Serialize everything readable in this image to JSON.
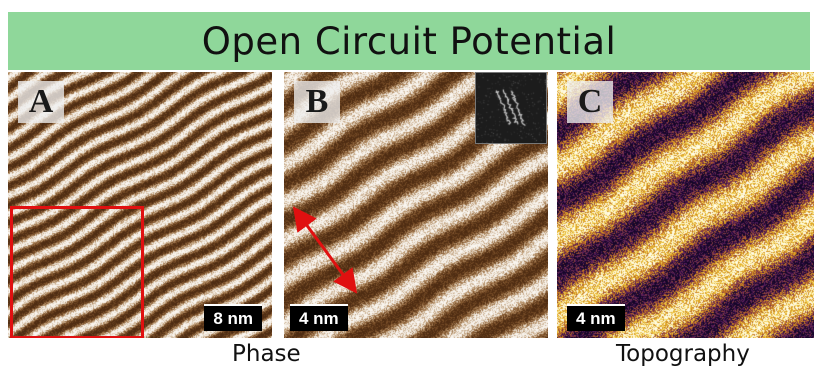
{
  "title": "Open Circuit Potential",
  "panels": [
    {
      "letter": "A",
      "scale_label": "8 nm",
      "colormap": "copper"
    },
    {
      "letter": "B",
      "scale_label": "4 nm",
      "colormap": "copper"
    },
    {
      "letter": "C",
      "scale_label": "4 nm",
      "colormap": "afmhot-purple"
    }
  ],
  "captions": {
    "phase": "Phase",
    "topography": "Topography"
  },
  "colors": {
    "banner": "#8fd79a",
    "roi_box": "#e01010",
    "arrow": "#e01010"
  }
}
